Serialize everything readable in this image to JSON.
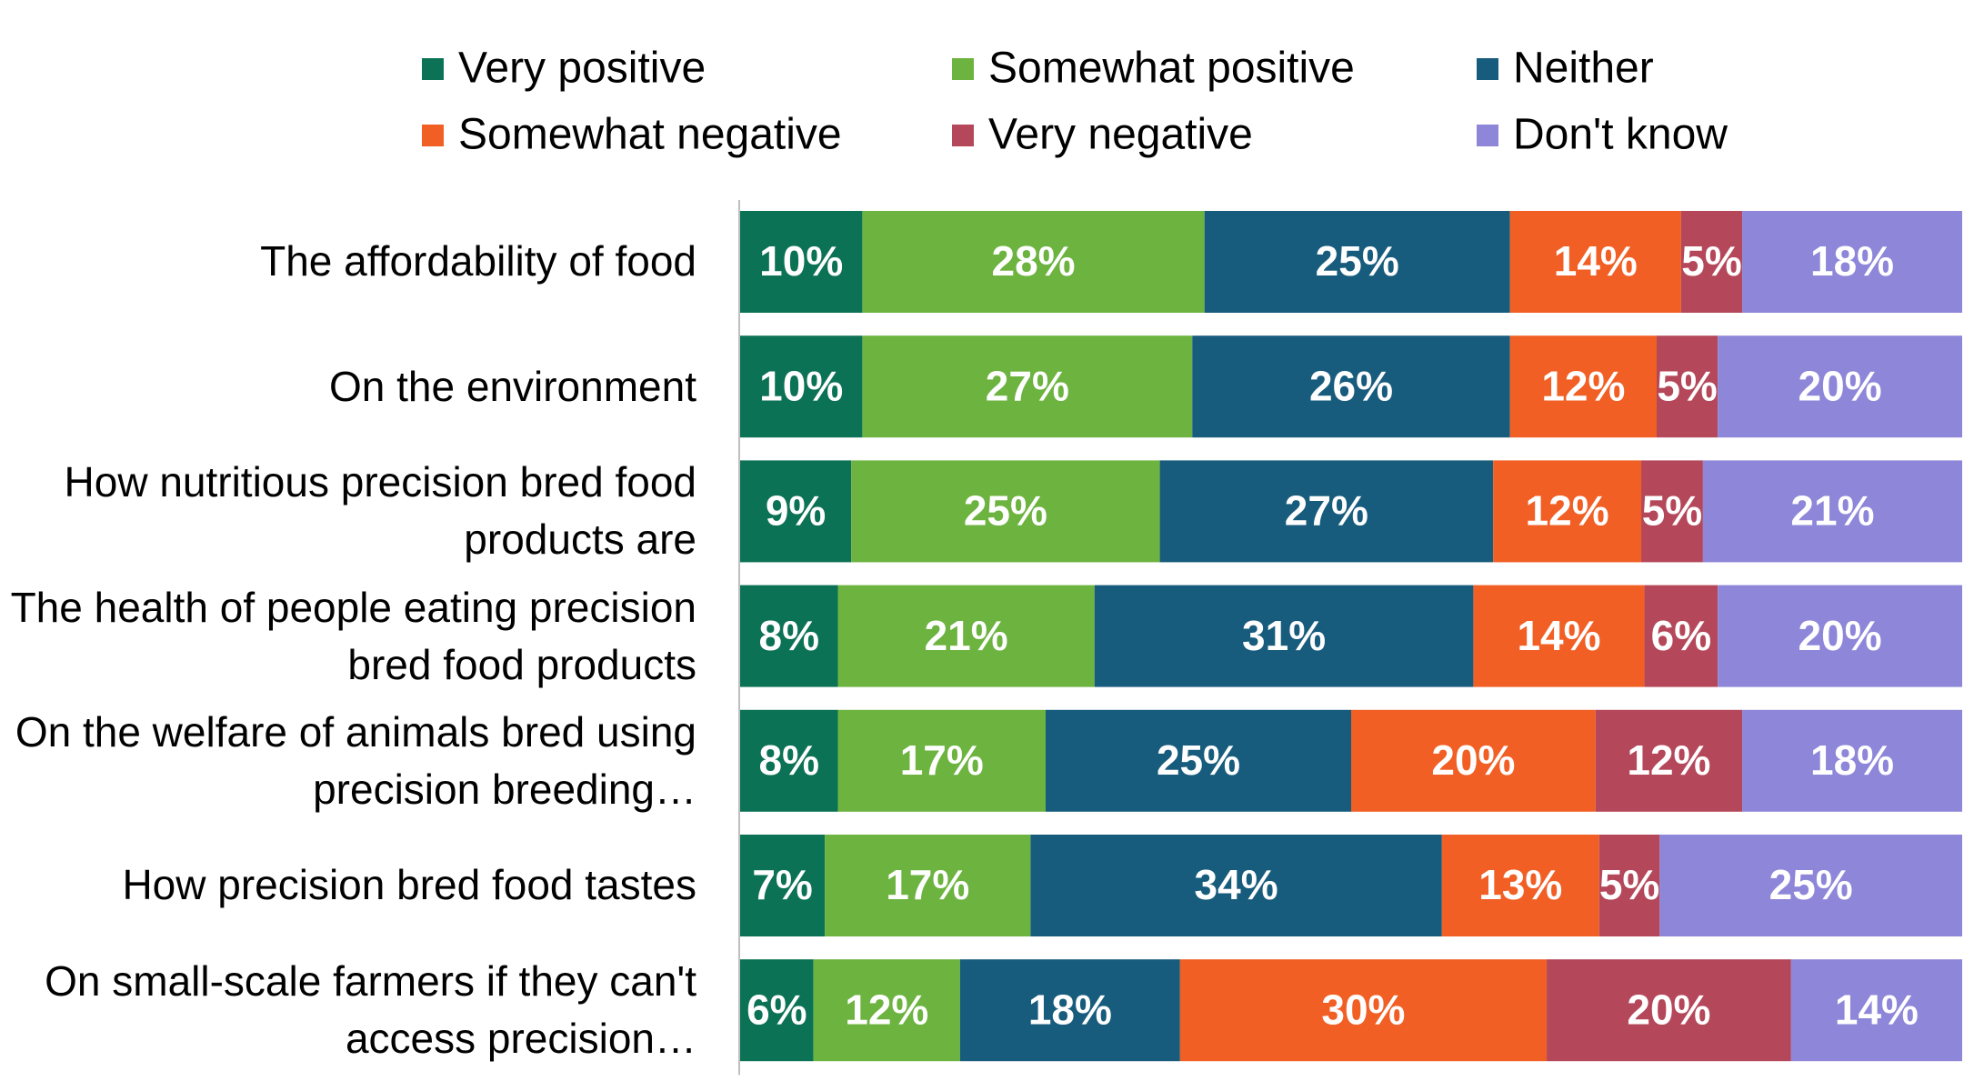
{
  "chart_data": {
    "type": "bar",
    "orientation": "horizontal",
    "stacking": "percent",
    "categories": [
      "The affordability of food",
      "On the environment ",
      "How nutritious precision bred food products are",
      "The health of people eating precision bred food products",
      "On the welfare of animals bred using precision breeding…",
      "How precision bred food tastes",
      "On small-scale farmers if they can't access precision…"
    ],
    "series": [
      {
        "name": "Very positive",
        "color": "#0c7255",
        "values": [
          10,
          10,
          9,
          8,
          8,
          7,
          6
        ],
        "value_labels": [
          "10%",
          "10%",
          "9%",
          "8%",
          "8%",
          "7%",
          "6%"
        ]
      },
      {
        "name": "Somewhat positive",
        "color": "#6cb33f",
        "values": [
          28,
          27,
          25,
          21,
          17,
          17,
          12
        ],
        "value_labels": [
          "28%",
          "27%",
          "25%",
          "21%",
          "17%",
          "17%",
          "12%"
        ]
      },
      {
        "name": "Neither",
        "color": "#185c7d",
        "values": [
          25,
          26,
          27,
          31,
          25,
          34,
          18
        ],
        "value_labels": [
          "25%",
          "26%",
          "27%",
          "31%",
          "25%",
          "34%",
          "18%"
        ]
      },
      {
        "name": "Somewhat negative",
        "color": "#f15f24",
        "values": [
          14,
          12,
          12,
          14,
          20,
          13,
          30
        ],
        "value_labels": [
          "14%",
          "12%",
          "12%",
          "14%",
          "20%",
          "13%",
          "30%"
        ]
      },
      {
        "name": "Very negative",
        "color": "#b4485a",
        "values": [
          5,
          5,
          5,
          6,
          12,
          5,
          20
        ],
        "value_labels": [
          "5%",
          "5%",
          "5%",
          "6%",
          "12%",
          "5%",
          "20%"
        ]
      },
      {
        "name": "Don't know",
        "color": "#8d86d9",
        "values": [
          18,
          20,
          21,
          20,
          18,
          25,
          14
        ],
        "value_labels": [
          "18%",
          "20%",
          "21%",
          "20%",
          "18%",
          "25%",
          "14%"
        ]
      }
    ]
  }
}
